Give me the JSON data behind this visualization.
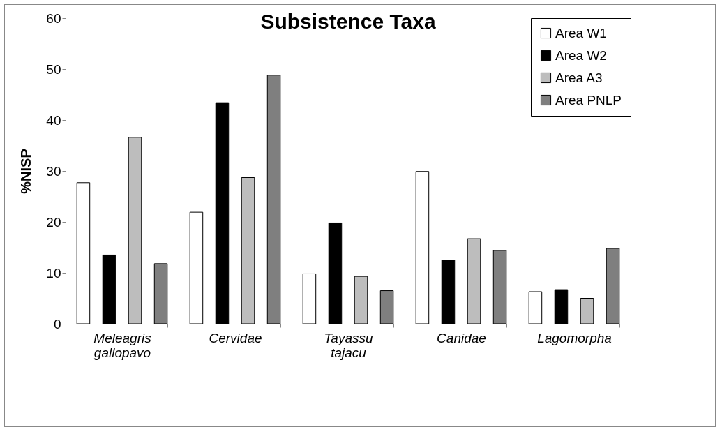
{
  "chart_data": {
    "type": "bar",
    "title": "Subsistence Taxa",
    "ylabel": "%NISP",
    "categories": [
      "Meleagris gallopavo",
      "Cervidae",
      "Tayassu tajacu",
      "Canidae",
      "Lagomorpha"
    ],
    "series": [
      {
        "name": "Area W1",
        "color": "#ffffff",
        "values": [
          27.7,
          21.9,
          9.8,
          29.9,
          6.3
        ]
      },
      {
        "name": "Area W2",
        "color": "#000000",
        "values": [
          13.5,
          43.4,
          19.8,
          12.5,
          6.7
        ]
      },
      {
        "name": "Area A3",
        "color": "#bdbdbd",
        "values": [
          36.6,
          28.7,
          9.3,
          16.7,
          5.0
        ]
      },
      {
        "name": "Area PNLP",
        "color": "#7f7f7f",
        "values": [
          11.8,
          48.8,
          6.5,
          14.4,
          14.8
        ]
      }
    ],
    "ylim": [
      0,
      60
    ],
    "yticks": [
      0,
      10,
      20,
      30,
      40,
      50,
      60
    ],
    "grid": false,
    "legend": "top right"
  }
}
